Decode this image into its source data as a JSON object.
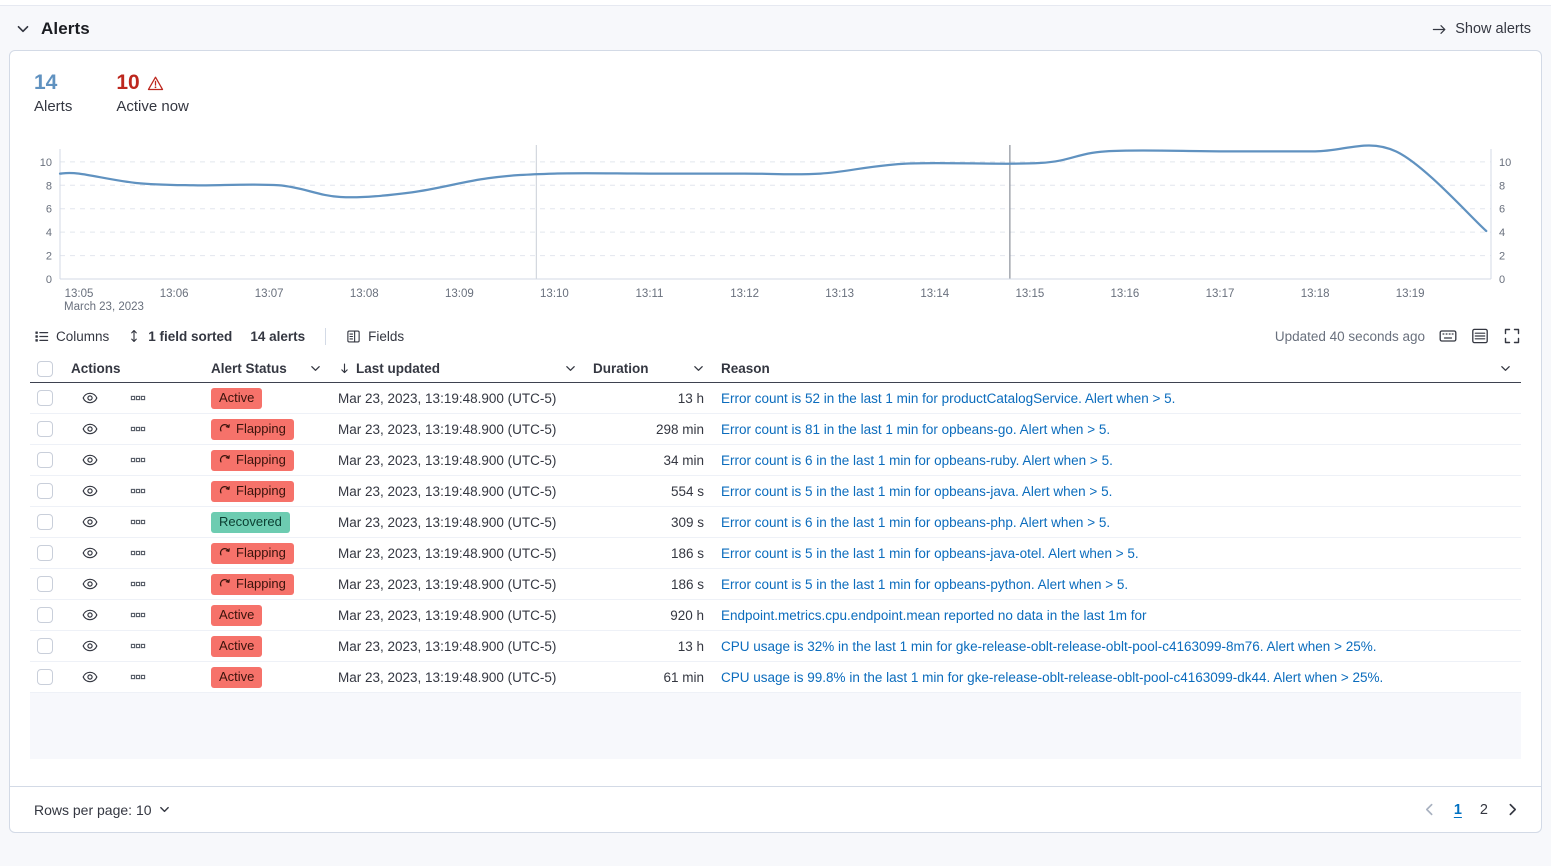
{
  "header": {
    "title": "Alerts",
    "show_alerts_label": "Show alerts"
  },
  "stats": {
    "alerts": {
      "value": "14",
      "label": "Alerts"
    },
    "active": {
      "value": "10",
      "label": "Active now"
    }
  },
  "colors": {
    "accent_blue": "#6092c0",
    "danger_red": "#bd271e",
    "link_blue": "#0b6cbd",
    "chart_line": "#6092c0"
  },
  "chart_data": {
    "type": "line",
    "title": "Alerts count over time",
    "x_tick_labels": [
      "13:05",
      "13:06",
      "13:07",
      "13:08",
      "13:09",
      "13:10",
      "13:11",
      "13:12",
      "13:13",
      "13:14",
      "13:15",
      "13:16",
      "13:17",
      "13:18",
      "13:19"
    ],
    "x_axis_subtitle": "March 23, 2023",
    "y_ticks": [
      0,
      2,
      4,
      6,
      8,
      10
    ],
    "ylim": [
      0,
      11.1
    ],
    "xlim": [
      -0.2,
      14.85
    ],
    "points": [
      [
        -0.2,
        9
      ],
      [
        0,
        9
      ],
      [
        0.6,
        8.2
      ],
      [
        1.2,
        8
      ],
      [
        2.1,
        8
      ],
      [
        2.75,
        7
      ],
      [
        3.5,
        7.4
      ],
      [
        4.3,
        8.6
      ],
      [
        5,
        9
      ],
      [
        6,
        9
      ],
      [
        7,
        9
      ],
      [
        7.8,
        9
      ],
      [
        8.7,
        9.85
      ],
      [
        10.1,
        9.9
      ],
      [
        10.8,
        10.9
      ],
      [
        12,
        10.9
      ],
      [
        13,
        10.9
      ],
      [
        13.85,
        10.9
      ],
      [
        14.8,
        4.1
      ]
    ],
    "annotations_x": [
      4.81,
      9.79
    ],
    "annotation_colors": [
      "#d3d7de",
      "#8b909a"
    ],
    "line_color": "#6092c0",
    "grid_color": "#e2e6ee",
    "axis_color": "#d3dae6",
    "label_color": "#69707d",
    "grid": true,
    "legend": false
  },
  "toolbar": {
    "columns_label": "Columns",
    "sorted_label": "1 field sorted",
    "alerts_count_label": "14 alerts",
    "fields_label": "Fields",
    "updated_label": "Updated 40 seconds ago"
  },
  "table": {
    "headers": {
      "actions": "Actions",
      "status": "Alert Status",
      "last_updated": "Last updated",
      "duration": "Duration",
      "reason": "Reason"
    },
    "status_colors": {
      "active": {
        "bg": "#f6726a",
        "text": "#3a130c"
      },
      "flapping": {
        "bg": "#f6726a",
        "text": "#3a130c"
      },
      "recovered": {
        "bg": "#6dccb1",
        "text": "#0a3d30"
      }
    },
    "rows": [
      {
        "status": "Active",
        "status_type": "active",
        "last_updated": "Mar 23, 2023, 13:19:48.900 (UTC-5)",
        "duration": "13 h",
        "reason": "Error count is 52 in the last 1 min for productCatalogService. Alert when > 5."
      },
      {
        "status": "Flapping",
        "status_type": "flapping",
        "last_updated": "Mar 23, 2023, 13:19:48.900 (UTC-5)",
        "duration": "298 min",
        "reason": "Error count is 81 in the last 1 min for opbeans-go. Alert when > 5."
      },
      {
        "status": "Flapping",
        "status_type": "flapping",
        "last_updated": "Mar 23, 2023, 13:19:48.900 (UTC-5)",
        "duration": "34 min",
        "reason": "Error count is 6 in the last 1 min for opbeans-ruby. Alert when > 5."
      },
      {
        "status": "Flapping",
        "status_type": "flapping",
        "last_updated": "Mar 23, 2023, 13:19:48.900 (UTC-5)",
        "duration": "554 s",
        "reason": "Error count is 5 in the last 1 min for opbeans-java. Alert when > 5."
      },
      {
        "status": "Recovered",
        "status_type": "recovered",
        "last_updated": "Mar 23, 2023, 13:19:48.900 (UTC-5)",
        "duration": "309 s",
        "reason": "Error count is 6 in the last 1 min for opbeans-php. Alert when > 5."
      },
      {
        "status": "Flapping",
        "status_type": "flapping",
        "last_updated": "Mar 23, 2023, 13:19:48.900 (UTC-5)",
        "duration": "186 s",
        "reason": "Error count is 5 in the last 1 min for opbeans-java-otel. Alert when > 5."
      },
      {
        "status": "Flapping",
        "status_type": "flapping",
        "last_updated": "Mar 23, 2023, 13:19:48.900 (UTC-5)",
        "duration": "186 s",
        "reason": "Error count is 5 in the last 1 min for opbeans-python. Alert when > 5."
      },
      {
        "status": "Active",
        "status_type": "active",
        "last_updated": "Mar 23, 2023, 13:19:48.900 (UTC-5)",
        "duration": "920 h",
        "reason": "Endpoint.metrics.cpu.endpoint.mean reported no data in the last 1m for"
      },
      {
        "status": "Active",
        "status_type": "active",
        "last_updated": "Mar 23, 2023, 13:19:48.900 (UTC-5)",
        "duration": "13 h",
        "reason": "CPU usage is 32% in the last 1 min for gke-release-oblt-release-oblt-pool-c4163099-8m76. Alert when > 25%."
      },
      {
        "status": "Active",
        "status_type": "active",
        "last_updated": "Mar 23, 2023, 13:19:48.900 (UTC-5)",
        "duration": "61 min",
        "reason": "CPU usage is 99.8% in the last 1 min for gke-release-oblt-release-oblt-pool-c4163099-dk44. Alert when > 25%."
      }
    ]
  },
  "footer": {
    "rows_per_page_label": "Rows per page: 10",
    "pages": [
      "1",
      "2"
    ],
    "current_page": "1"
  }
}
